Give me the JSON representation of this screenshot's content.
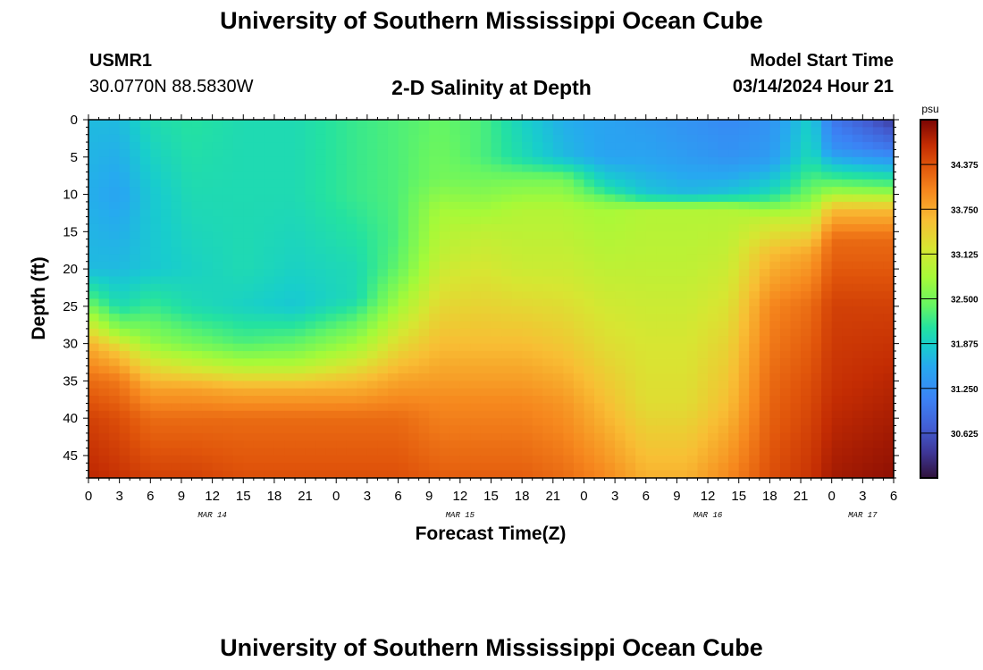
{
  "titles": {
    "main": "University of Southern Mississippi Ocean Cube",
    "footer": "University of Southern Mississippi Ocean Cube"
  },
  "station": {
    "id": "USMR1",
    "coords": "30.0770N  88.5830W"
  },
  "model": {
    "label": "Model Start Time",
    "time": "03/14/2024 Hour 21"
  },
  "chart_data": {
    "type": "heatmap",
    "title": "2-D Salinity at Depth",
    "xlabel": "Forecast Time(Z)",
    "ylabel": "Depth (ft)",
    "x_range_hours": [
      0,
      78
    ],
    "y_range_ft": [
      0,
      48
    ],
    "x_tick_labels": [
      "0",
      "3",
      "6",
      "9",
      "12",
      "15",
      "18",
      "21",
      "0",
      "3",
      "6",
      "9",
      "12",
      "15",
      "18",
      "21",
      "0",
      "3",
      "6",
      "9",
      "12",
      "15",
      "18",
      "21",
      "0",
      "3",
      "6"
    ],
    "y_ticks": [
      0,
      5,
      10,
      15,
      20,
      25,
      30,
      35,
      40,
      45
    ],
    "date_labels": [
      {
        "text": "MAR 14",
        "hour": 12
      },
      {
        "text": "MAR 15",
        "hour": 36
      },
      {
        "text": "MAR 16",
        "hour": 60
      },
      {
        "text": "MAR 17",
        "hour": 75
      }
    ],
    "colorbar": {
      "unit": "psu",
      "range": [
        30.0,
        35.0
      ],
      "ticks": [
        30.625,
        31.25,
        31.875,
        32.5,
        33.125,
        33.75,
        34.375
      ],
      "tick_labels": [
        "30.625",
        "31.250",
        "31.875",
        "32.500",
        "33.125",
        "33.750",
        "34.375"
      ]
    },
    "profiles": [
      {
        "hour": 0,
        "depth": [
          0,
          10,
          20,
          24,
          27,
          30,
          35,
          40,
          48
        ],
        "psu": [
          31.7,
          31.6,
          31.7,
          32.3,
          33.0,
          33.7,
          34.2,
          34.5,
          34.7
        ]
      },
      {
        "hour": 3,
        "depth": [
          0,
          10,
          20,
          25,
          28,
          31,
          35,
          40,
          48
        ],
        "psu": [
          31.7,
          31.5,
          31.7,
          32.0,
          32.6,
          33.5,
          34.1,
          34.4,
          34.6
        ]
      },
      {
        "hour": 6,
        "depth": [
          0,
          10,
          20,
          25,
          30,
          33,
          36,
          40,
          48
        ],
        "psu": [
          32.0,
          31.8,
          31.8,
          32.2,
          32.7,
          33.3,
          33.8,
          34.2,
          34.5
        ]
      },
      {
        "hour": 10,
        "depth": [
          0,
          10,
          20,
          25,
          30,
          33,
          36,
          40,
          48
        ],
        "psu": [
          32.1,
          32.0,
          31.9,
          32.0,
          32.5,
          33.1,
          33.8,
          34.2,
          34.5
        ]
      },
      {
        "hour": 15,
        "depth": [
          0,
          10,
          20,
          25,
          30,
          33,
          36,
          40,
          48
        ],
        "psu": [
          32.0,
          32.0,
          32.0,
          31.9,
          32.3,
          32.9,
          33.7,
          34.2,
          34.4
        ]
      },
      {
        "hour": 20,
        "depth": [
          0,
          10,
          20,
          25,
          30,
          33,
          36,
          40,
          48
        ],
        "psu": [
          32.0,
          32.0,
          31.9,
          31.8,
          32.4,
          32.9,
          33.7,
          34.2,
          34.4
        ]
      },
      {
        "hour": 26,
        "depth": [
          0,
          10,
          20,
          24,
          28,
          31,
          35,
          40,
          48
        ],
        "psu": [
          32.2,
          32.2,
          32.0,
          32.0,
          32.5,
          32.9,
          33.6,
          34.2,
          34.4
        ]
      },
      {
        "hour": 30,
        "depth": [
          0,
          10,
          16,
          20,
          25,
          30,
          35,
          40,
          48
        ],
        "psu": [
          32.3,
          32.3,
          32.3,
          32.4,
          32.8,
          33.3,
          33.8,
          34.2,
          34.4
        ]
      },
      {
        "hour": 34,
        "depth": [
          0,
          8,
          12,
          18,
          24,
          30,
          38,
          48
        ],
        "psu": [
          32.4,
          32.5,
          32.8,
          33.0,
          33.3,
          33.6,
          34.0,
          34.3
        ]
      },
      {
        "hour": 38,
        "depth": [
          0,
          5,
          10,
          15,
          20,
          30,
          38,
          48
        ],
        "psu": [
          32.3,
          32.3,
          32.6,
          33.0,
          33.2,
          33.6,
          34.0,
          34.3
        ]
      },
      {
        "hour": 42,
        "depth": [
          0,
          5,
          8,
          12,
          20,
          30,
          38,
          48
        ],
        "psu": [
          31.9,
          32.0,
          32.5,
          32.9,
          33.1,
          33.6,
          34.0,
          34.3
        ]
      },
      {
        "hour": 46,
        "depth": [
          0,
          5,
          8,
          12,
          20,
          30,
          38,
          48
        ],
        "psu": [
          31.6,
          31.7,
          32.5,
          32.9,
          33.1,
          33.5,
          33.9,
          34.2
        ]
      },
      {
        "hour": 50,
        "depth": [
          0,
          5,
          9,
          12,
          20,
          30,
          38,
          48
        ],
        "psu": [
          31.5,
          31.5,
          32.0,
          32.8,
          33.0,
          33.3,
          33.6,
          34.0
        ]
      },
      {
        "hour": 54,
        "depth": [
          0,
          5,
          10,
          12,
          20,
          30,
          38,
          48
        ],
        "psu": [
          31.4,
          31.5,
          31.8,
          32.9,
          33.0,
          33.2,
          33.3,
          33.7
        ]
      },
      {
        "hour": 58,
        "depth": [
          0,
          5,
          10,
          12,
          20,
          30,
          38,
          48
        ],
        "psu": [
          31.3,
          31.4,
          31.7,
          32.9,
          33.0,
          33.2,
          33.3,
          33.7
        ]
      },
      {
        "hour": 62,
        "depth": [
          0,
          5,
          10,
          12,
          20,
          30,
          38,
          48
        ],
        "psu": [
          31.2,
          31.3,
          31.8,
          32.9,
          33.1,
          33.4,
          33.6,
          34.0
        ]
      },
      {
        "hour": 66,
        "depth": [
          0,
          5,
          10,
          13,
          18,
          25,
          35,
          48
        ],
        "psu": [
          31.3,
          31.4,
          32.0,
          33.0,
          33.6,
          34.0,
          34.2,
          34.4
        ]
      },
      {
        "hour": 70,
        "depth": [
          0,
          5,
          10,
          14,
          18,
          25,
          35,
          48
        ],
        "psu": [
          31.9,
          32.0,
          32.5,
          33.2,
          33.8,
          34.2,
          34.4,
          34.6
        ]
      },
      {
        "hour": 72,
        "depth": [
          0,
          4,
          9,
          12,
          16,
          25,
          35,
          48
        ],
        "psu": [
          31.0,
          31.3,
          32.5,
          33.6,
          34.2,
          34.5,
          34.6,
          34.8
        ]
      },
      {
        "hour": 78,
        "depth": [
          0,
          4,
          9,
          12,
          16,
          25,
          35,
          48
        ],
        "psu": [
          30.4,
          31.0,
          32.4,
          33.6,
          34.2,
          34.5,
          34.7,
          34.9
        ]
      }
    ]
  }
}
